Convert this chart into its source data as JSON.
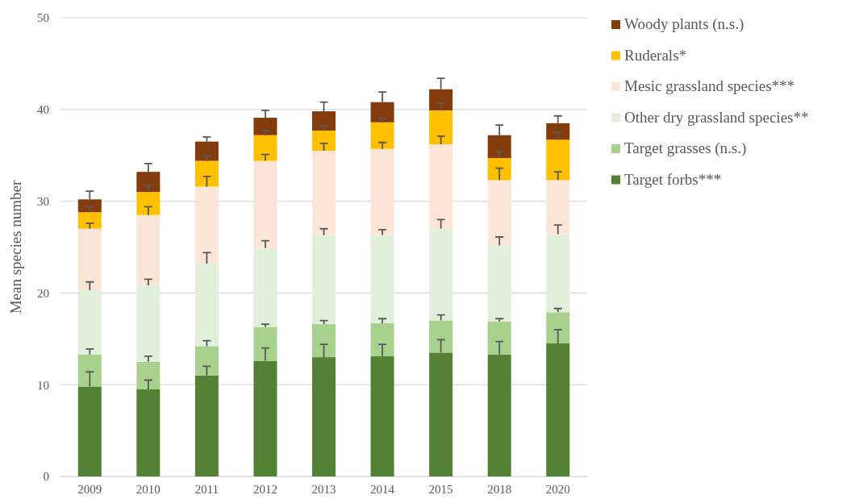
{
  "chart_data": {
    "type": "bar",
    "stacked": true,
    "ylabel": "Mean species number",
    "categories": [
      "2009",
      "2010",
      "2011",
      "2012",
      "2013",
      "2014",
      "2015",
      "2018",
      "2020"
    ],
    "ylim": [
      0,
      50
    ],
    "yticks": [
      0,
      10,
      20,
      30,
      40,
      50
    ],
    "grid": "y",
    "legend": "right",
    "series": [
      {
        "name": "Target forbs***",
        "color": "#548235",
        "values": [
          9.8,
          9.5,
          11.0,
          12.6,
          13.0,
          13.1,
          13.5,
          13.3,
          14.5
        ],
        "errors": [
          [
            9.8,
            11.4
          ],
          [
            9.5,
            10.5
          ],
          [
            11.0,
            12.0
          ],
          [
            12.6,
            14.0
          ],
          [
            13.0,
            14.4
          ],
          [
            13.1,
            14.4
          ],
          [
            13.5,
            14.9
          ],
          [
            13.3,
            14.7
          ],
          [
            14.5,
            16.0
          ]
        ]
      },
      {
        "name": "Target grasses (n.s.)",
        "color": "#a9d18e",
        "values": [
          3.5,
          3.0,
          3.2,
          3.7,
          3.6,
          3.6,
          3.5,
          3.6,
          3.4
        ],
        "errors": [
          [
            13.3,
            13.9
          ],
          [
            12.5,
            13.1
          ],
          [
            14.2,
            14.8
          ],
          [
            16.3,
            16.6
          ],
          [
            16.6,
            17.0
          ],
          [
            16.7,
            17.2
          ],
          [
            17.0,
            17.6
          ],
          [
            16.9,
            17.2
          ],
          [
            17.9,
            18.3
          ]
        ]
      },
      {
        "name": "Other dry grassland species**",
        "color": "#e2efda",
        "values": [
          7.0,
          8.3,
          9.0,
          8.6,
          9.7,
          9.6,
          10.0,
          8.3,
          8.5
        ],
        "errors": [
          [
            20.3,
            21.2
          ],
          [
            20.8,
            21.5
          ],
          [
            23.2,
            24.4
          ],
          [
            24.9,
            25.7
          ],
          [
            26.3,
            27.0
          ],
          [
            26.3,
            26.9
          ],
          [
            27.0,
            28.0
          ],
          [
            25.2,
            26.1
          ],
          [
            26.4,
            27.4
          ]
        ]
      },
      {
        "name": "Mesic grassland species***",
        "color": "#fbe5d6",
        "values": [
          6.7,
          7.7,
          8.4,
          9.5,
          9.2,
          9.4,
          9.2,
          7.1,
          5.9
        ],
        "errors": [
          [
            27.0,
            27.6
          ],
          [
            28.5,
            29.4
          ],
          [
            31.6,
            32.7
          ],
          [
            34.4,
            35.1
          ],
          [
            35.5,
            36.3
          ],
          [
            35.7,
            36.4
          ],
          [
            36.2,
            37.1
          ],
          [
            32.3,
            33.6
          ],
          [
            32.3,
            33.2
          ]
        ]
      },
      {
        "name": "Ruderals*",
        "color": "#ffc000",
        "values": [
          1.8,
          2.5,
          2.8,
          2.8,
          2.2,
          2.9,
          3.7,
          2.4,
          4.4
        ],
        "errors": [
          [
            28.8,
            29.4
          ],
          [
            31.0,
            31.7
          ],
          [
            34.4,
            35.0
          ],
          [
            37.2,
            37.7
          ],
          [
            37.7,
            38.2
          ],
          [
            38.6,
            39.0
          ],
          [
            39.9,
            40.7
          ],
          [
            34.7,
            35.4
          ],
          [
            36.7,
            37.5
          ]
        ]
      },
      {
        "name": "Woody plants (n.s.)",
        "color": "#843c0c",
        "values": [
          1.4,
          2.2,
          2.1,
          1.9,
          2.1,
          2.2,
          2.3,
          2.5,
          1.8
        ],
        "errors": [
          [
            30.2,
            31.1
          ],
          [
            33.2,
            34.1
          ],
          [
            36.5,
            37.0
          ],
          [
            39.1,
            39.9
          ],
          [
            39.8,
            40.8
          ],
          [
            40.8,
            41.9
          ],
          [
            42.2,
            43.4
          ],
          [
            37.2,
            38.3
          ],
          [
            38.5,
            39.3
          ]
        ]
      }
    ]
  }
}
